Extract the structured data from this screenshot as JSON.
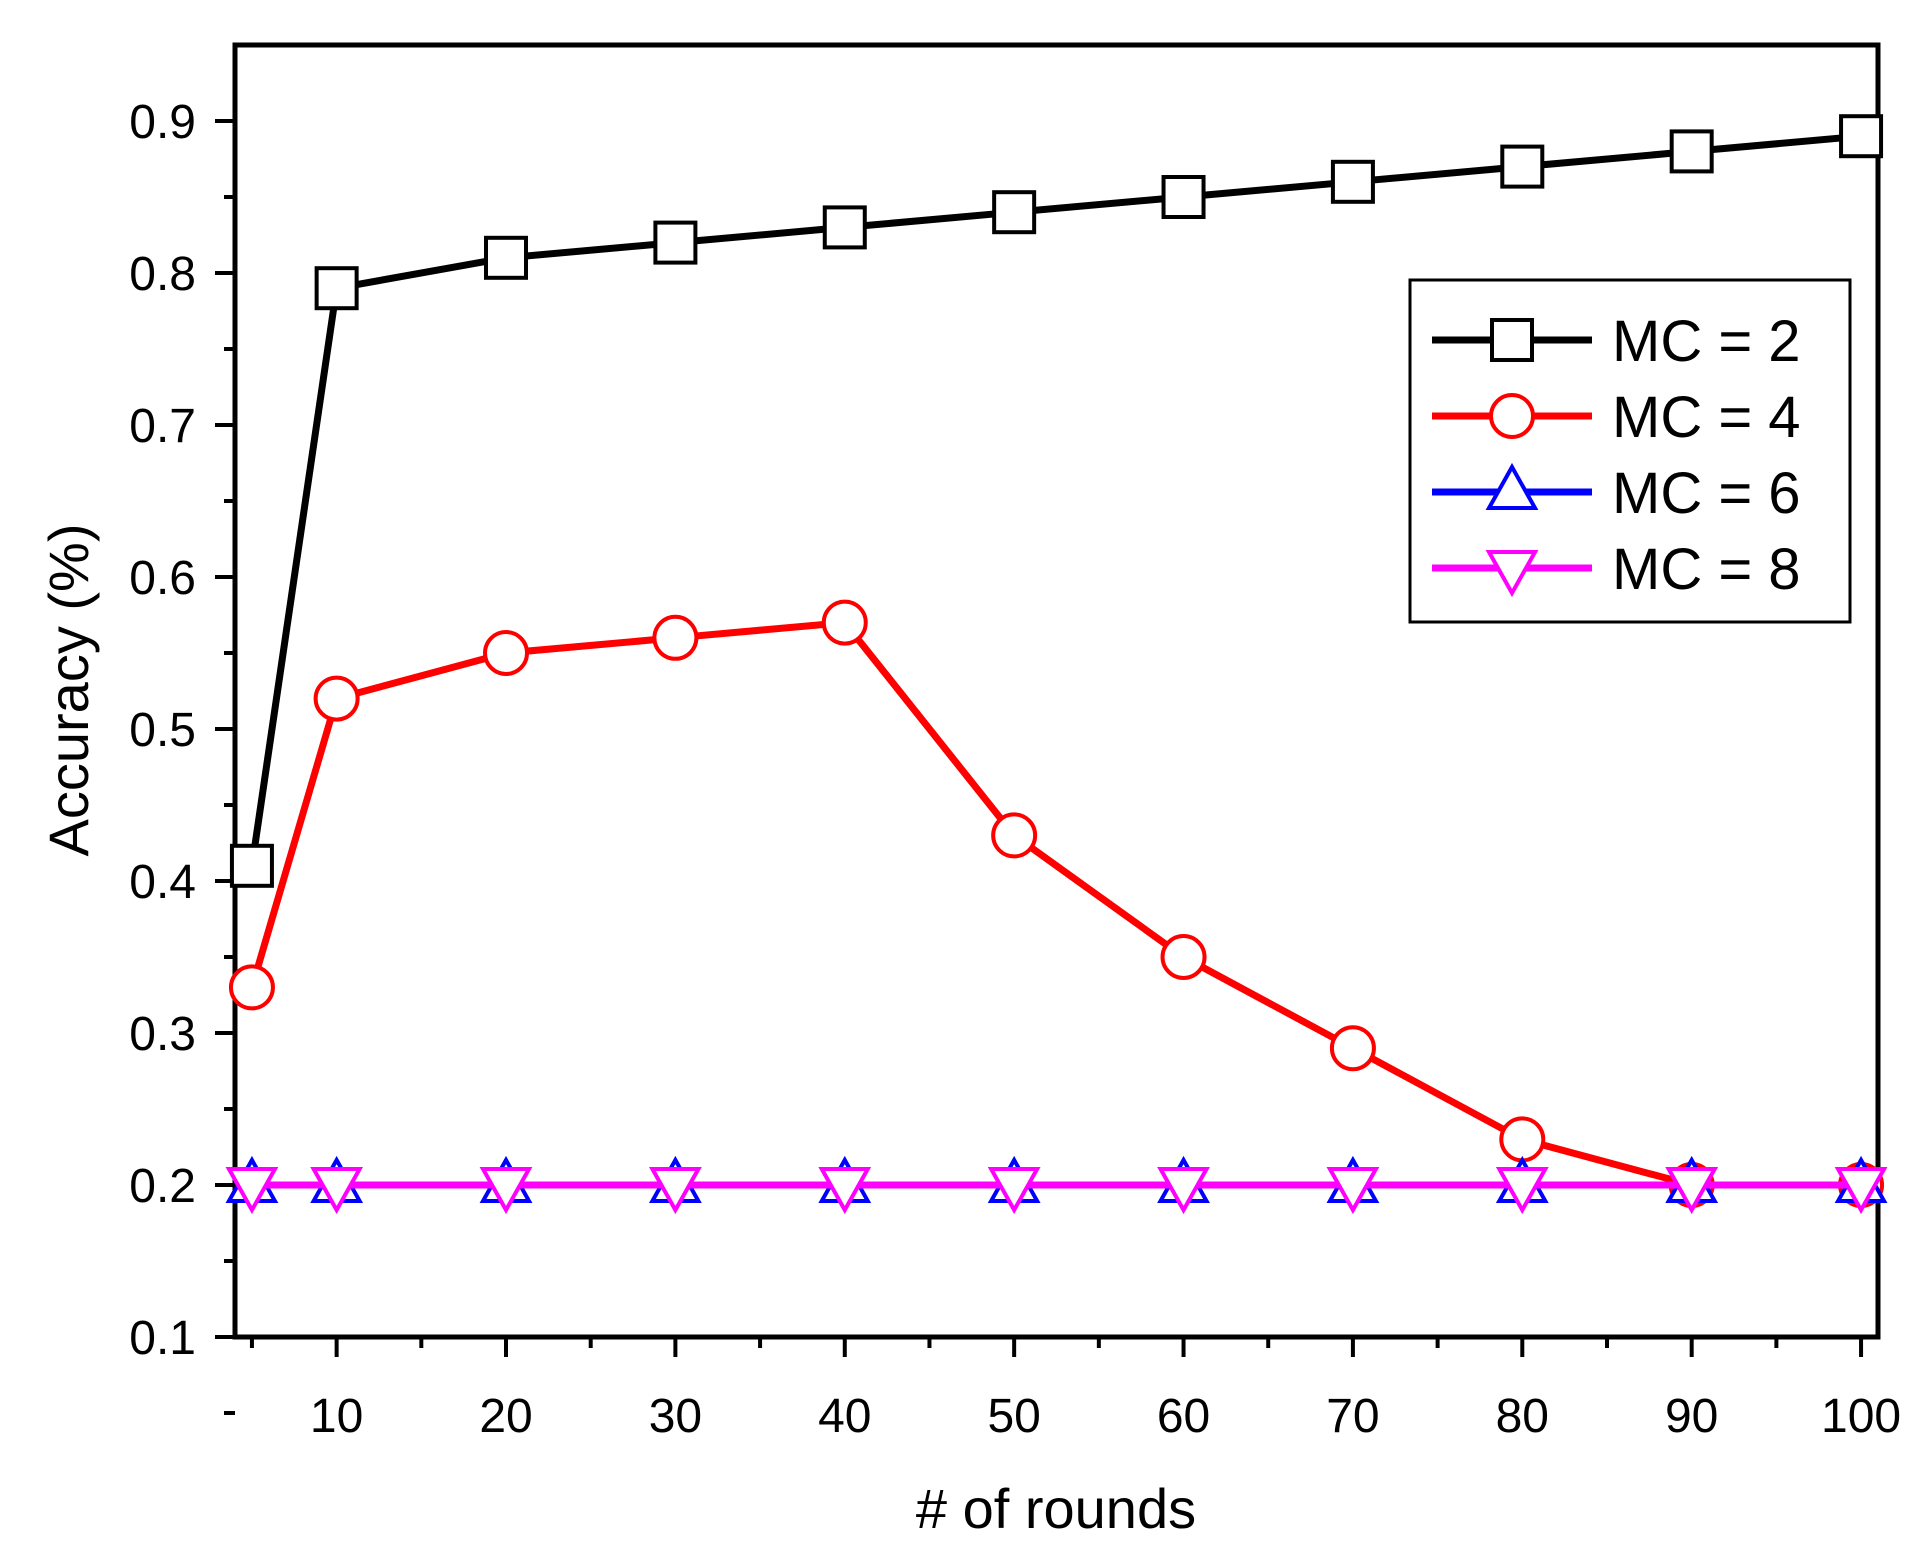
{
  "chart_data": {
    "type": "line",
    "title": "",
    "xlabel": "# of rounds",
    "ylabel": "Accuracy (%)",
    "xlim": [
      4,
      101
    ],
    "ylim": [
      0.1,
      0.95
    ],
    "grid": false,
    "x": [
      5,
      10,
      20,
      30,
      40,
      50,
      60,
      70,
      80,
      90,
      100
    ],
    "x_ticks": [
      10,
      20,
      30,
      40,
      50,
      60,
      70,
      80,
      90,
      100
    ],
    "x_tick_labels": [
      "10",
      "20",
      "30",
      "40",
      "50",
      "60",
      "70",
      "80",
      "90",
      "100"
    ],
    "y_ticks": [
      0.1,
      0.2,
      0.3,
      0.4,
      0.5,
      0.6,
      0.7,
      0.8,
      0.9
    ],
    "y_tick_labels": [
      "0.1",
      "0.2",
      "0.3",
      "0.4",
      "0.5",
      "0.6",
      "0.7",
      "0.8",
      "0.9"
    ],
    "legend_position": "top-right",
    "series": [
      {
        "name": "MC = 2",
        "color": "#000000",
        "marker": "square",
        "values": [
          0.41,
          0.79,
          0.81,
          0.82,
          0.83,
          0.84,
          0.85,
          0.86,
          0.87,
          0.88,
          0.89
        ]
      },
      {
        "name": "MC = 4",
        "color": "#ff0000",
        "marker": "circle",
        "values": [
          0.33,
          0.52,
          0.55,
          0.56,
          0.57,
          0.43,
          0.35,
          0.29,
          0.23,
          0.2,
          0.2
        ]
      },
      {
        "name": "MC = 6",
        "color": "#0000ff",
        "marker": "triangle-up",
        "values": [
          0.2,
          0.2,
          0.2,
          0.2,
          0.2,
          0.2,
          0.2,
          0.2,
          0.2,
          0.2,
          0.2
        ]
      },
      {
        "name": "MC = 8",
        "color": "#ff00ff",
        "marker": "triangle-down",
        "values": [
          0.2,
          0.2,
          0.2,
          0.2,
          0.2,
          0.2,
          0.2,
          0.2,
          0.2,
          0.2,
          0.2
        ]
      }
    ]
  }
}
